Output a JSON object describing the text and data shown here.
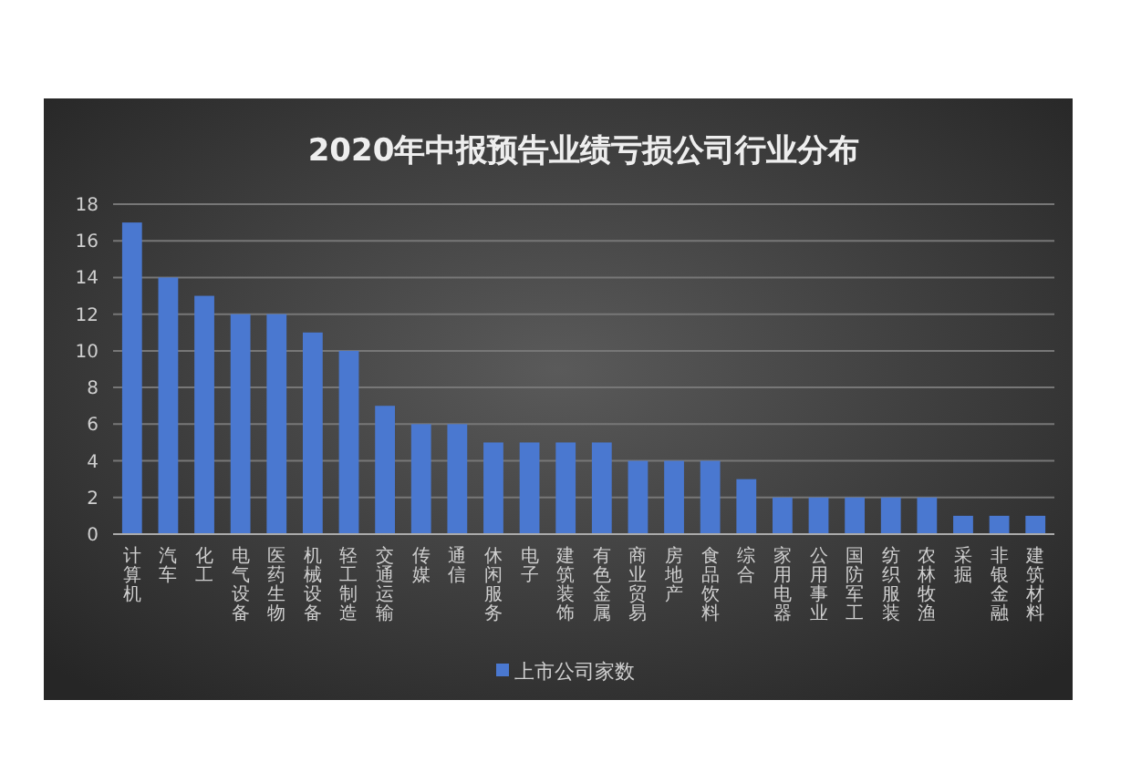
{
  "chart_data": {
    "type": "bar",
    "title": "2020年中报预告业绩亏损公司行业分布",
    "categories": [
      "计算机",
      "汽车",
      "化工",
      "电气设备",
      "医药生物",
      "机械设备",
      "轻工制造",
      "交通运输",
      "传媒",
      "通信",
      "休闲服务",
      "电子",
      "建筑装饰",
      "有色金属",
      "商业贸易",
      "房地产",
      "食品饮料",
      "综合",
      "家用电器",
      "公用事业",
      "国防军工",
      "纺织服装",
      "农林牧渔",
      "采掘",
      "非银金融",
      "建筑材料"
    ],
    "series": [
      {
        "name": "上市公司家数",
        "color": "#4a78d0",
        "values": [
          17,
          14,
          13,
          12,
          12,
          11,
          10,
          7,
          6,
          6,
          5,
          5,
          5,
          5,
          4,
          4,
          4,
          3,
          2,
          2,
          2,
          2,
          2,
          1,
          1,
          1
        ]
      }
    ],
    "ylim": [
      0,
      18
    ],
    "yticks": [
      0,
      2,
      4,
      6,
      8,
      10,
      12,
      14,
      16,
      18
    ],
    "grid": "y",
    "legend": "bottom"
  }
}
